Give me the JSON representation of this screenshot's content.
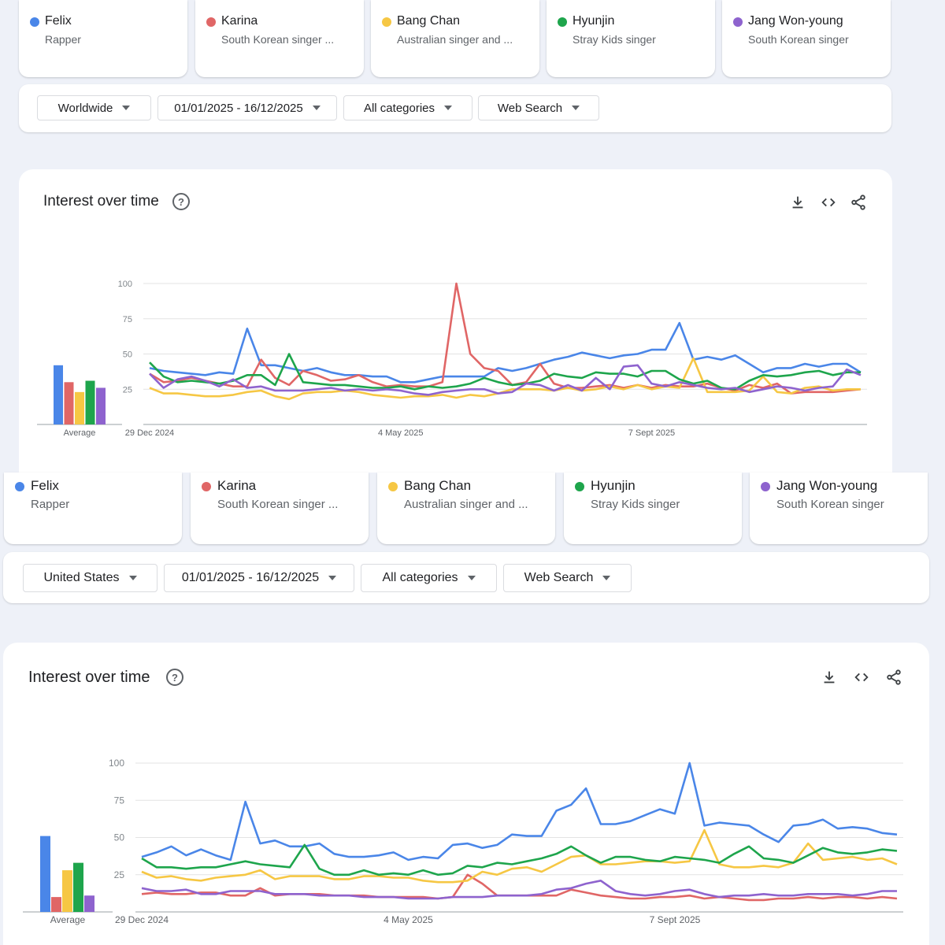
{
  "terms": [
    {
      "name": "Felix",
      "desc": "Rapper",
      "color": "#4a86e8"
    },
    {
      "name": "Karina",
      "desc": "South Korean singer ...",
      "color": "#e06666"
    },
    {
      "name": "Bang Chan",
      "desc": "Australian singer and ...",
      "color": "#f6c744"
    },
    {
      "name": "Hyunjin",
      "desc": "Stray Kids singer",
      "color": "#1ea54c"
    },
    {
      "name": "Jang Won-young",
      "desc": "South Korean singer",
      "color": "#8e63ce"
    }
  ],
  "panel1": {
    "filters": {
      "region": "Worldwide",
      "date": "01/01/2025 - 16/12/2025",
      "category": "All categories",
      "search_type": "Web Search"
    },
    "chart_title": "Interest over time"
  },
  "panel2": {
    "filters": {
      "region": "United States",
      "date": "01/01/2025 - 16/12/2025",
      "category": "All categories",
      "search_type": "Web Search"
    },
    "chart_title": "Interest over time"
  },
  "chart_data": [
    {
      "type": "line",
      "title": "Interest over time",
      "region": "Worldwide",
      "ylim": [
        0,
        100
      ],
      "yticks": [
        25,
        50,
        75,
        100
      ],
      "x_tick_labels": [
        "29 Dec 2024",
        "4 May 2025",
        "7 Sept 2025"
      ],
      "x_tick_index": [
        0,
        18,
        36
      ],
      "average_label": "Average",
      "averages": [
        {
          "name": "Felix",
          "value": 42
        },
        {
          "name": "Karina",
          "value": 30
        },
        {
          "name": "Bang Chan",
          "value": 23
        },
        {
          "name": "Hyunjin",
          "value": 31
        },
        {
          "name": "Jang Won-young",
          "value": 26
        }
      ],
      "series": [
        {
          "name": "Felix",
          "values": [
            40,
            38,
            37,
            36,
            35,
            37,
            36,
            68,
            42,
            42,
            40,
            38,
            40,
            37,
            35,
            35,
            34,
            34,
            30,
            30,
            32,
            34,
            34,
            34,
            34,
            40,
            38,
            40,
            43,
            46,
            48,
            51,
            49,
            47,
            49,
            50,
            53,
            53,
            72,
            46,
            48,
            46,
            49,
            43,
            37,
            40,
            40,
            43,
            41,
            43,
            43,
            37
          ]
        },
        {
          "name": "Karina",
          "values": [
            36,
            30,
            31,
            33,
            31,
            29,
            27,
            27,
            46,
            33,
            28,
            38,
            35,
            31,
            32,
            35,
            30,
            27,
            28,
            27,
            27,
            30,
            100,
            50,
            40,
            38,
            28,
            30,
            43,
            29,
            26,
            26,
            27,
            28,
            26,
            28,
            26,
            28,
            27,
            27,
            29,
            26,
            24,
            28,
            26,
            29,
            22,
            23,
            23,
            23,
            24,
            25
          ]
        },
        {
          "name": "Bang Chan",
          "values": [
            26,
            22,
            22,
            21,
            20,
            20,
            21,
            23,
            24,
            20,
            18,
            22,
            23,
            23,
            24,
            23,
            21,
            20,
            19,
            20,
            20,
            21,
            19,
            21,
            20,
            22,
            25,
            25,
            25,
            24,
            26,
            24,
            25,
            27,
            25,
            28,
            25,
            27,
            26,
            47,
            23,
            23,
            23,
            24,
            34,
            23,
            22,
            26,
            27,
            24,
            25,
            25
          ]
        },
        {
          "name": "Hyunjin",
          "values": [
            44,
            34,
            30,
            31,
            30,
            29,
            31,
            35,
            35,
            28,
            50,
            30,
            29,
            28,
            28,
            27,
            26,
            26,
            27,
            25,
            27,
            26,
            27,
            29,
            33,
            30,
            28,
            29,
            31,
            36,
            34,
            33,
            37,
            36,
            36,
            34,
            38,
            38,
            32,
            29,
            31,
            26,
            25,
            31,
            35,
            34,
            35,
            37,
            38,
            35,
            37,
            37
          ]
        },
        {
          "name": "Jang Won-young",
          "values": [
            36,
            26,
            32,
            34,
            31,
            27,
            32,
            26,
            27,
            24,
            24,
            24,
            25,
            26,
            24,
            25,
            24,
            25,
            24,
            22,
            21,
            23,
            24,
            25,
            25,
            22,
            23,
            29,
            28,
            24,
            28,
            24,
            33,
            25,
            41,
            42,
            29,
            27,
            30,
            28,
            26,
            25,
            26,
            23,
            25,
            27,
            26,
            24,
            26,
            27,
            39,
            35
          ]
        }
      ]
    },
    {
      "type": "line",
      "title": "Interest over time",
      "region": "United States",
      "ylim": [
        0,
        100
      ],
      "yticks": [
        25,
        50,
        75,
        100
      ],
      "x_tick_labels": [
        "29 Dec 2024",
        "4 May 2025",
        "7 Sept 2025"
      ],
      "x_tick_index": [
        0,
        18,
        36
      ],
      "average_label": "Average",
      "averages": [
        {
          "name": "Felix",
          "value": 51
        },
        {
          "name": "Karina",
          "value": 10
        },
        {
          "name": "Bang Chan",
          "value": 28
        },
        {
          "name": "Hyunjin",
          "value": 33
        },
        {
          "name": "Jang Won-young",
          "value": 11
        }
      ],
      "series": [
        {
          "name": "Felix",
          "values": [
            37,
            40,
            44,
            38,
            42,
            38,
            35,
            74,
            46,
            48,
            44,
            44,
            46,
            39,
            37,
            37,
            38,
            40,
            35,
            37,
            36,
            45,
            46,
            43,
            45,
            52,
            51,
            51,
            68,
            72,
            83,
            59,
            59,
            61,
            65,
            69,
            66,
            100,
            58,
            60,
            59,
            58,
            52,
            47,
            58,
            59,
            62,
            56,
            57,
            56,
            53,
            52
          ]
        },
        {
          "name": "Karina",
          "values": [
            12,
            13,
            12,
            12,
            13,
            13,
            11,
            11,
            16,
            11,
            12,
            12,
            12,
            11,
            11,
            11,
            10,
            10,
            10,
            10,
            9,
            10,
            25,
            19,
            11,
            11,
            11,
            11,
            11,
            15,
            13,
            11,
            10,
            9,
            9,
            10,
            10,
            11,
            9,
            10,
            9,
            8,
            8,
            9,
            9,
            10,
            9,
            10,
            10,
            9,
            10,
            9
          ]
        },
        {
          "name": "Bang Chan",
          "values": [
            27,
            23,
            24,
            22,
            21,
            23,
            24,
            25,
            28,
            22,
            24,
            24,
            24,
            22,
            22,
            24,
            24,
            23,
            23,
            21,
            20,
            20,
            21,
            27,
            25,
            29,
            30,
            27,
            32,
            37,
            38,
            32,
            32,
            33,
            34,
            34,
            33,
            34,
            55,
            32,
            30,
            30,
            31,
            30,
            33,
            46,
            35,
            36,
            37,
            35,
            36,
            32
          ]
        },
        {
          "name": "Hyunjin",
          "values": [
            36,
            30,
            30,
            29,
            30,
            30,
            32,
            34,
            32,
            31,
            30,
            45,
            29,
            25,
            25,
            28,
            25,
            26,
            25,
            28,
            25,
            26,
            31,
            30,
            33,
            32,
            34,
            36,
            39,
            44,
            38,
            33,
            37,
            37,
            35,
            34,
            37,
            36,
            35,
            33,
            39,
            44,
            36,
            35,
            33,
            38,
            43,
            40,
            39,
            40,
            42,
            41
          ]
        },
        {
          "name": "Jang Won-young",
          "values": [
            16,
            14,
            14,
            15,
            12,
            12,
            14,
            14,
            14,
            12,
            12,
            12,
            11,
            11,
            11,
            10,
            10,
            10,
            9,
            9,
            9,
            10,
            10,
            10,
            11,
            11,
            11,
            12,
            15,
            16,
            19,
            21,
            14,
            12,
            11,
            12,
            14,
            15,
            12,
            10,
            11,
            11,
            12,
            11,
            11,
            12,
            12,
            12,
            11,
            12,
            14,
            14
          ]
        }
      ]
    }
  ]
}
